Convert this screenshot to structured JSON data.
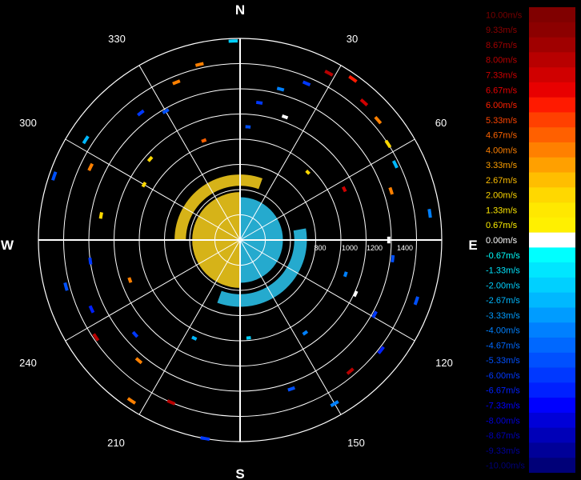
{
  "chart_data": {
    "type": "radar-ppi-velocity",
    "compass": {
      "n": "N",
      "e": "E",
      "s": "S",
      "w": "W"
    },
    "bearing_labels": [
      "30",
      "60",
      "120",
      "150",
      "210",
      "240",
      "300",
      "330"
    ],
    "range_labels": [
      "800",
      "1000",
      "1200",
      "1400"
    ],
    "range_max": 1600,
    "ring_step": 200,
    "velocity_scale": {
      "unit": "m/s",
      "labels": [
        "10.00m/s",
        "9.33m/s",
        "8.67m/s",
        "8.00m/s",
        "7.33m/s",
        "6.67m/s",
        "6.00m/s",
        "5.33m/s",
        "4.67m/s",
        "4.00m/s",
        "3.33m/s",
        "2.67m/s",
        "2.00m/s",
        "1.33m/s",
        "0.67m/s",
        "0.00m/s",
        "-0.67m/s",
        "-1.33m/s",
        "-2.00m/s",
        "-2.67m/s",
        "-3.33m/s",
        "-4.00m/s",
        "-4.67m/s",
        "-5.33m/s",
        "-6.00m/s",
        "-6.67m/s",
        "-7.33m/s",
        "-8.00m/s",
        "-8.67m/s",
        "-9.33m/s",
        "-10.00m/s"
      ],
      "colors": [
        "#800000",
        "#8c0000",
        "#a00000",
        "#b80000",
        "#d00000",
        "#e80000",
        "#ff1a00",
        "#ff4000",
        "#ff6000",
        "#ff8000",
        "#ffa000",
        "#ffbe00",
        "#ffd800",
        "#ffe800",
        "#fff000",
        "#ffffff",
        "#00ffff",
        "#00e6ff",
        "#00d0ff",
        "#00b8ff",
        "#009cff",
        "#0080ff",
        "#0068ff",
        "#0050ff",
        "#0038ff",
        "#0020ff",
        "#0000ff",
        "#0000d8",
        "#0000b8",
        "#000098",
        "#000078"
      ],
      "text_colors": [
        "#7a0000",
        "#8e0000",
        "#a20000",
        "#ba0000",
        "#d00000",
        "#e80000",
        "#ff2000",
        "#ff4400",
        "#ff6400",
        "#ff8000",
        "#ffa000",
        "#ffbe00",
        "#ffd800",
        "#ffe800",
        "#fff000",
        "#ffffff",
        "#00ffff",
        "#00e6ff",
        "#00d0ff",
        "#00b8ff",
        "#009cff",
        "#0080ff",
        "#0068ff",
        "#0050ff",
        "#0038ff",
        "#0020ff",
        "#0000ff",
        "#0000d8",
        "#0000b8",
        "#000098",
        "#000078"
      ]
    },
    "echo_regions": [
      {
        "name": "approaching-core",
        "from_deg": 180,
        "to_deg": 360,
        "range": [
          0,
          380
        ],
        "velocity": 1.33,
        "color": "#e8c21a"
      },
      {
        "name": "receding-core",
        "from_deg": 0,
        "to_deg": 180,
        "range": [
          0,
          340
        ],
        "velocity": -2.0,
        "color": "#28b8e0"
      },
      {
        "name": "approaching-ring",
        "from_deg": 270,
        "to_deg": 20,
        "range": [
          430,
          520
        ],
        "velocity": 1.33,
        "color": "#e8c21a"
      },
      {
        "name": "receding-ring",
        "from_deg": 80,
        "to_deg": 200,
        "range": [
          430,
          530
        ],
        "velocity": -2.0,
        "color": "#28b8e0"
      }
    ],
    "scattered_gates": [
      {
        "az": 358,
        "range": 1580,
        "velocity": -2.0
      },
      {
        "az": 347,
        "range": 1430,
        "velocity": 4.0
      },
      {
        "az": 338,
        "range": 1350,
        "velocity": 4.0
      },
      {
        "az": 330,
        "range": 1180,
        "velocity": -5.33
      },
      {
        "az": 322,
        "range": 1280,
        "velocity": -6.0
      },
      {
        "az": 303,
        "range": 1460,
        "velocity": -2.67
      },
      {
        "az": 296,
        "range": 1320,
        "velocity": 4.0
      },
      {
        "az": 289,
        "range": 1560,
        "velocity": -5.33
      },
      {
        "az": 280,
        "range": 1120,
        "velocity": 2.0
      },
      {
        "az": 262,
        "range": 1200,
        "velocity": -6.0
      },
      {
        "az": 255,
        "range": 1430,
        "velocity": -5.33
      },
      {
        "az": 245,
        "range": 1300,
        "velocity": -6.67
      },
      {
        "az": 236,
        "range": 1380,
        "velocity": 8.0
      },
      {
        "az": 228,
        "range": 1120,
        "velocity": -6.0
      },
      {
        "az": 220,
        "range": 1250,
        "velocity": 4.0
      },
      {
        "az": 214,
        "range": 1540,
        "velocity": 4.0
      },
      {
        "az": 203,
        "range": 1400,
        "velocity": 8.0
      },
      {
        "az": 190,
        "range": 1600,
        "velocity": -6.0
      },
      {
        "az": 175,
        "range": 780,
        "velocity": -2.0
      },
      {
        "az": 161,
        "range": 1250,
        "velocity": -5.33
      },
      {
        "az": 150,
        "range": 1500,
        "velocity": -4.0
      },
      {
        "az": 140,
        "range": 1360,
        "velocity": 8.0
      },
      {
        "az": 128,
        "range": 1420,
        "velocity": -6.67
      },
      {
        "az": 119,
        "range": 1220,
        "velocity": -6.0
      },
      {
        "az": 109,
        "range": 1480,
        "velocity": -5.33
      },
      {
        "az": 97,
        "range": 1220,
        "velocity": -5.33
      },
      {
        "az": 82,
        "range": 1520,
        "velocity": -4.0
      },
      {
        "az": 72,
        "range": 1260,
        "velocity": 4.0
      },
      {
        "az": 64,
        "range": 1370,
        "velocity": -2.67
      },
      {
        "az": 57,
        "range": 1400,
        "velocity": 2.0
      },
      {
        "az": 49,
        "range": 1450,
        "velocity": 4.0
      },
      {
        "az": 42,
        "range": 1470,
        "velocity": 7.33
      },
      {
        "az": 35,
        "range": 1560,
        "velocity": 6.0
      },
      {
        "az": 28,
        "range": 1500,
        "velocity": 8.0
      },
      {
        "az": 23,
        "range": 1350,
        "velocity": -6.0
      },
      {
        "az": 15,
        "range": 1240,
        "velocity": -4.0
      },
      {
        "az": 8,
        "range": 1100,
        "velocity": -6.0
      },
      {
        "az": 4,
        "range": 900,
        "velocity": -5.33
      },
      {
        "az": 312,
        "range": 960,
        "velocity": 2.0
      },
      {
        "az": 340,
        "range": 840,
        "velocity": 4.67
      },
      {
        "az": 64,
        "range": 920,
        "velocity": 7.33
      },
      {
        "az": 108,
        "range": 880,
        "velocity": -4.0
      },
      {
        "az": 145,
        "range": 900,
        "velocity": -4.0
      },
      {
        "az": 250,
        "range": 930,
        "velocity": 4.0
      },
      {
        "az": 205,
        "range": 860,
        "velocity": -2.67
      },
      {
        "az": 300,
        "range": 880,
        "velocity": 2.0
      },
      {
        "az": 45,
        "range": 760,
        "velocity": 2.0
      },
      {
        "az": 90,
        "range": 1180,
        "velocity": 0.0
      },
      {
        "az": 115,
        "range": 1010,
        "velocity": 0.0
      },
      {
        "az": 20,
        "range": 1040,
        "velocity": 0.0
      }
    ]
  }
}
